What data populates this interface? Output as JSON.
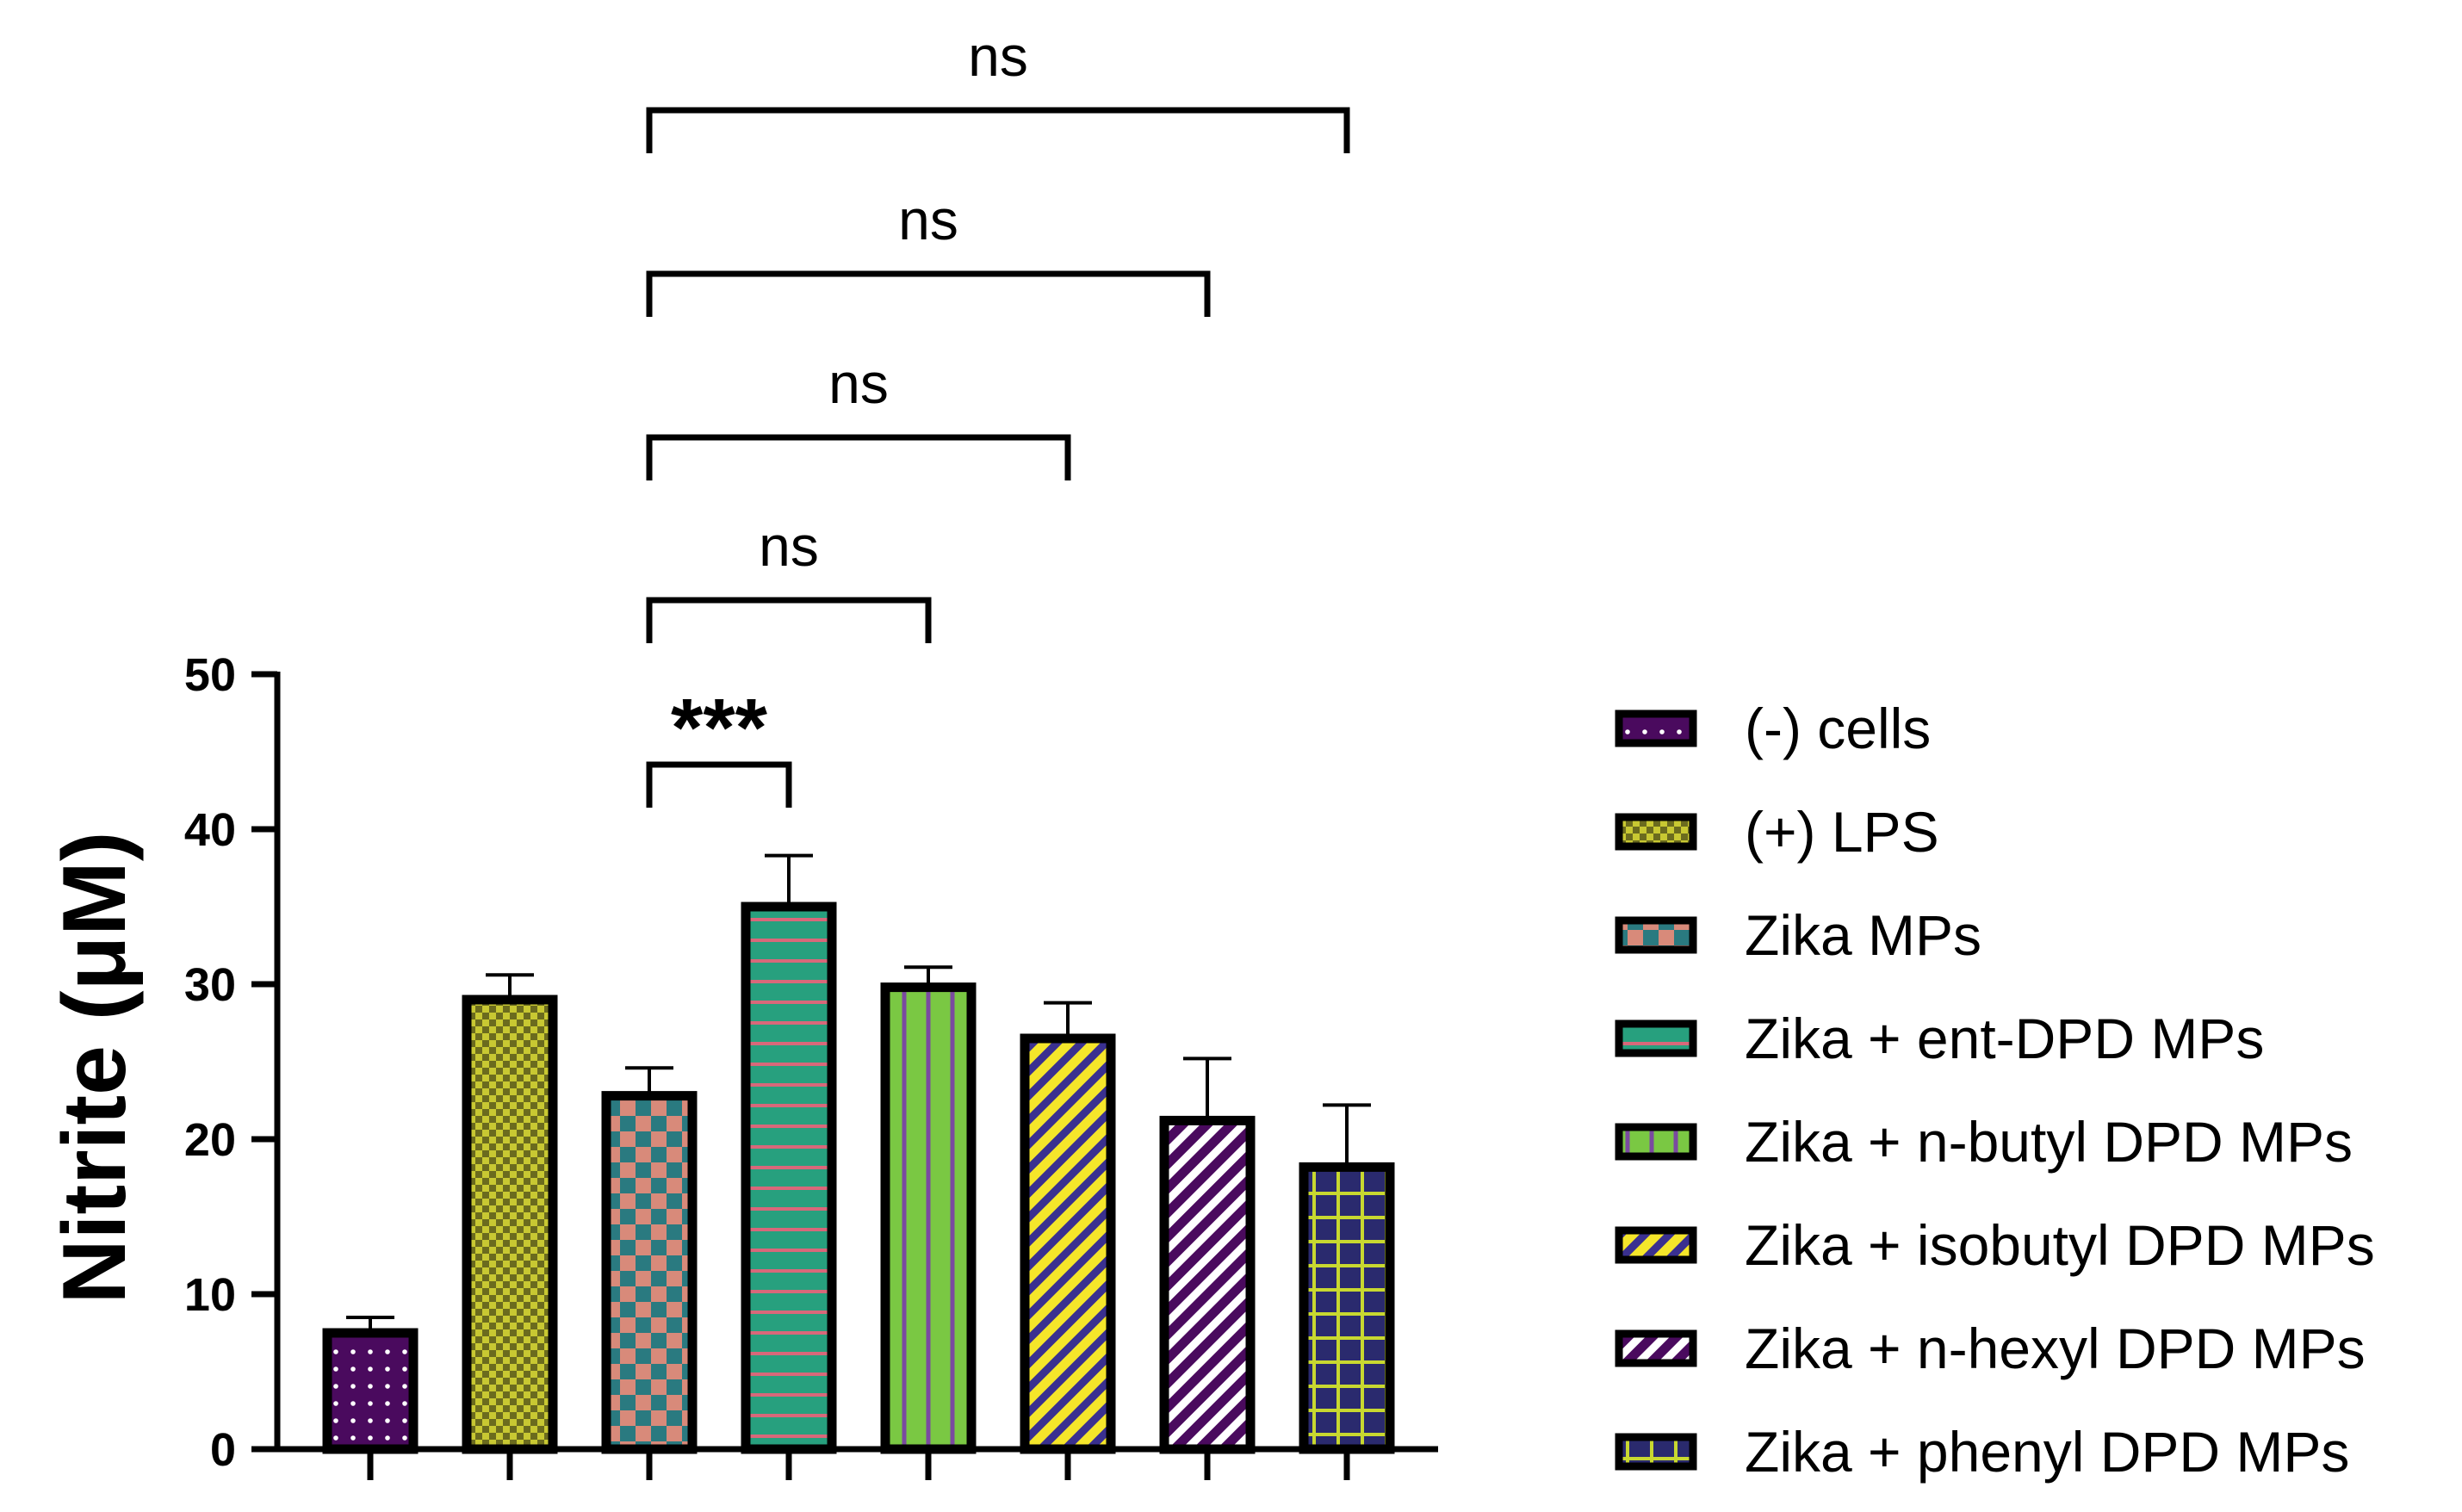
{
  "chart_data": {
    "type": "bar",
    "title": "",
    "xlabel": "",
    "ylabel": "Nitrite (μM)",
    "ylim": [
      0,
      50
    ],
    "yticks": [
      0,
      10,
      20,
      30,
      40,
      50
    ],
    "categories": [
      "(-) cells",
      "(+) LPS",
      "Zika MPs",
      "Zika + ent-DPD MPs",
      "Zika + n-butyl DPD MPs",
      "Zika + isobutyl DPD MPs",
      "Zika + n-hexyl DPD MPs",
      "Zika + phenyl DPD MPs"
    ],
    "values": [
      7.5,
      29.0,
      22.8,
      35.0,
      29.8,
      26.5,
      21.2,
      18.2
    ],
    "errors": [
      1.0,
      1.6,
      1.8,
      3.3,
      1.3,
      2.3,
      4.0,
      4.0
    ],
    "legend_position": "right",
    "patterns": [
      "dots",
      "checker-small",
      "checker-large",
      "horizontal-lines",
      "vertical-lines",
      "diagonal",
      "diagonal",
      "grid"
    ],
    "colors": [
      {
        "fill": "#4a0a5e",
        "accent": "#ffffff"
      },
      {
        "fill": "#6b6b1e",
        "accent": "#c8c832"
      },
      {
        "fill": "#d88a7a",
        "accent": "#2a7a80"
      },
      {
        "fill": "#27a07e",
        "accent": "#d8687a"
      },
      {
        "fill": "#7ac843",
        "accent": "#7a4aa0"
      },
      {
        "fill": "#f5e62a",
        "accent": "#3a3090"
      },
      {
        "fill": "#4a0a5e",
        "accent": "#ffffff"
      },
      {
        "fill": "#2a2a6e",
        "accent": "#c8d830"
      }
    ],
    "annotations": [
      {
        "from": 2,
        "to": 3,
        "label": "***"
      },
      {
        "from": 2,
        "to": 4,
        "label": "ns"
      },
      {
        "from": 2,
        "to": 5,
        "label": "ns"
      },
      {
        "from": 2,
        "to": 6,
        "label": "ns"
      },
      {
        "from": 2,
        "to": 7,
        "label": "ns"
      }
    ]
  }
}
